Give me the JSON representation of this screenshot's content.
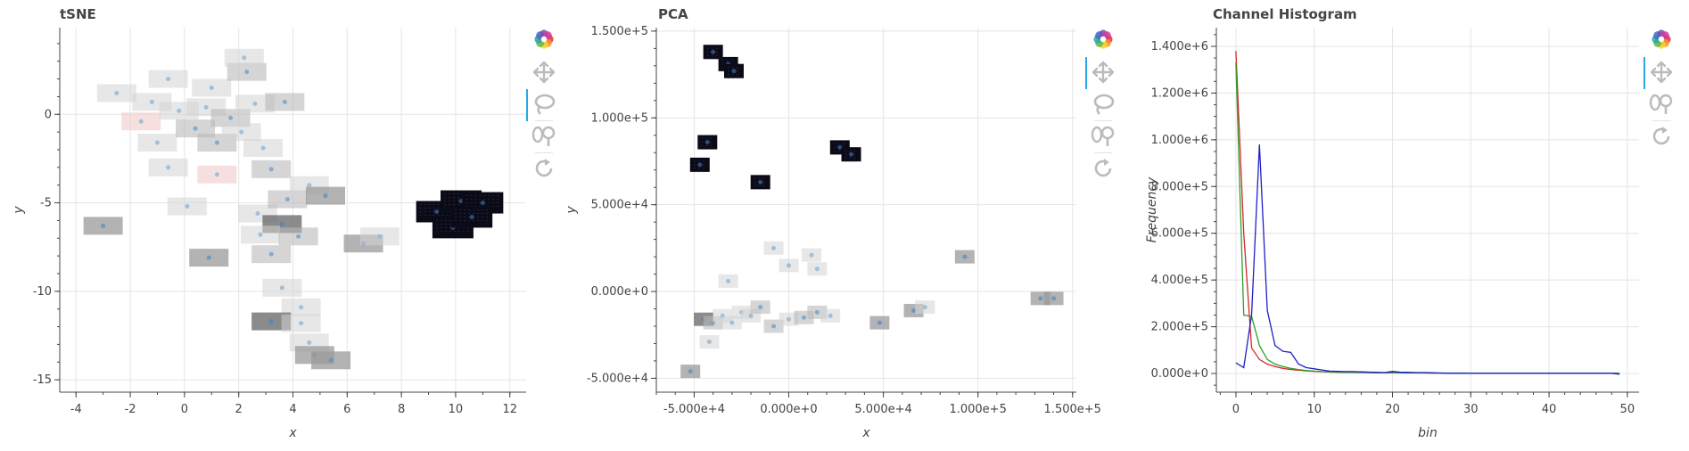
{
  "chart_data": [
    {
      "type": "scatter",
      "title": "tSNE",
      "xlabel": "x",
      "ylabel": "y",
      "xlim": [
        -4.6,
        12.6
      ],
      "ylim": [
        -15.7,
        4.9
      ],
      "xticks": [
        -4,
        -2,
        0,
        2,
        4,
        6,
        8,
        10,
        12
      ],
      "yticks": [
        0,
        -5,
        -10,
        -15
      ],
      "grid": true,
      "points": [
        {
          "x": -3.0,
          "y": -6.3,
          "tone": "gray"
        },
        {
          "x": -2.5,
          "y": 1.2,
          "tone": "light"
        },
        {
          "x": -1.6,
          "y": -0.4,
          "tone": "pink"
        },
        {
          "x": -1.2,
          "y": 0.7,
          "tone": "light"
        },
        {
          "x": -0.6,
          "y": 2.0,
          "tone": "light"
        },
        {
          "x": -0.2,
          "y": 0.2,
          "tone": "light"
        },
        {
          "x": -1.0,
          "y": -1.6,
          "tone": "light"
        },
        {
          "x": -0.6,
          "y": -3.0,
          "tone": "light"
        },
        {
          "x": 0.4,
          "y": -0.8,
          "tone": "mid"
        },
        {
          "x": 0.8,
          "y": 0.4,
          "tone": "light"
        },
        {
          "x": 1.0,
          "y": 1.5,
          "tone": "light"
        },
        {
          "x": 1.2,
          "y": -1.6,
          "tone": "mid"
        },
        {
          "x": 1.7,
          "y": -0.2,
          "tone": "mid"
        },
        {
          "x": 2.1,
          "y": -1.0,
          "tone": "light"
        },
        {
          "x": 1.2,
          "y": -3.4,
          "tone": "pink"
        },
        {
          "x": 2.3,
          "y": 2.4,
          "tone": "mid"
        },
        {
          "x": 2.2,
          "y": 3.2,
          "tone": "light"
        },
        {
          "x": 2.6,
          "y": 0.6,
          "tone": "light"
        },
        {
          "x": 2.9,
          "y": -1.9,
          "tone": "light"
        },
        {
          "x": 3.7,
          "y": 0.7,
          "tone": "mid"
        },
        {
          "x": 3.2,
          "y": -3.1,
          "tone": "mid"
        },
        {
          "x": 0.1,
          "y": -5.2,
          "tone": "light"
        },
        {
          "x": 2.7,
          "y": -5.6,
          "tone": "light"
        },
        {
          "x": 3.8,
          "y": -4.8,
          "tone": "mid"
        },
        {
          "x": 4.6,
          "y": -4.0,
          "tone": "light"
        },
        {
          "x": 5.2,
          "y": -4.6,
          "tone": "gray"
        },
        {
          "x": 3.6,
          "y": -6.2,
          "tone": "dark"
        },
        {
          "x": 2.8,
          "y": -6.8,
          "tone": "light"
        },
        {
          "x": 4.2,
          "y": -6.9,
          "tone": "mid"
        },
        {
          "x": 3.2,
          "y": -7.9,
          "tone": "mid"
        },
        {
          "x": 0.9,
          "y": -8.1,
          "tone": "gray"
        },
        {
          "x": 6.6,
          "y": -7.3,
          "tone": "gray"
        },
        {
          "x": 7.2,
          "y": -6.9,
          "tone": "light"
        },
        {
          "x": 3.6,
          "y": -9.8,
          "tone": "light"
        },
        {
          "x": 4.3,
          "y": -10.9,
          "tone": "light"
        },
        {
          "x": 3.2,
          "y": -11.7,
          "tone": "dark"
        },
        {
          "x": 4.3,
          "y": -11.8,
          "tone": "light"
        },
        {
          "x": 4.6,
          "y": -12.9,
          "tone": "light"
        },
        {
          "x": 4.8,
          "y": -13.6,
          "tone": "gray"
        },
        {
          "x": 5.4,
          "y": -13.9,
          "tone": "gray"
        },
        {
          "x": 9.3,
          "y": -5.5,
          "tone": "black"
        },
        {
          "x": 10.2,
          "y": -4.9,
          "tone": "black"
        },
        {
          "x": 11.0,
          "y": -5.0,
          "tone": "black"
        },
        {
          "x": 9.9,
          "y": -6.4,
          "tone": "black"
        },
        {
          "x": 10.6,
          "y": -5.8,
          "tone": "black"
        }
      ]
    },
    {
      "type": "scatter",
      "title": "PCA",
      "xlabel": "x",
      "ylabel": "y",
      "xlim": [
        -70000,
        152000
      ],
      "ylim": [
        -58000,
        152000
      ],
      "xticks": [
        -50000,
        0,
        50000,
        100000,
        150000
      ],
      "xticklabels": [
        "-5.000e+4",
        "0.000e+0",
        "5.000e+4",
        "1.000e+5",
        "1.500e+5"
      ],
      "yticks": [
        150000,
        100000,
        50000,
        0,
        -50000
      ],
      "yticklabels": [
        "1.500e+5",
        "1.000e+5",
        "5.000e+4",
        "0.000e+0",
        "-5.000e+4"
      ],
      "grid": true,
      "points": [
        {
          "x": -40000,
          "y": 138000,
          "tone": "black"
        },
        {
          "x": -32000,
          "y": 131000,
          "tone": "black"
        },
        {
          "x": -29000,
          "y": 127000,
          "tone": "black"
        },
        {
          "x": -43000,
          "y": 86000,
          "tone": "black"
        },
        {
          "x": -47000,
          "y": 73000,
          "tone": "black"
        },
        {
          "x": -15000,
          "y": 63000,
          "tone": "black"
        },
        {
          "x": 27000,
          "y": 83000,
          "tone": "black"
        },
        {
          "x": 33000,
          "y": 79000,
          "tone": "black"
        },
        {
          "x": -52000,
          "y": -46000,
          "tone": "gray"
        },
        {
          "x": -42000,
          "y": -29000,
          "tone": "light"
        },
        {
          "x": -45000,
          "y": -16000,
          "tone": "dark"
        },
        {
          "x": -40000,
          "y": -18000,
          "tone": "mid"
        },
        {
          "x": -35000,
          "y": -14000,
          "tone": "light"
        },
        {
          "x": -30000,
          "y": -18000,
          "tone": "light"
        },
        {
          "x": -25000,
          "y": -12000,
          "tone": "light"
        },
        {
          "x": -20000,
          "y": -14000,
          "tone": "light"
        },
        {
          "x": -32000,
          "y": 6000,
          "tone": "light"
        },
        {
          "x": -15000,
          "y": -9000,
          "tone": "mid"
        },
        {
          "x": -8000,
          "y": -20000,
          "tone": "mid"
        },
        {
          "x": 0,
          "y": -16000,
          "tone": "light"
        },
        {
          "x": 8000,
          "y": -15000,
          "tone": "mid"
        },
        {
          "x": 15000,
          "y": -12000,
          "tone": "mid"
        },
        {
          "x": 22000,
          "y": -14000,
          "tone": "light"
        },
        {
          "x": -8000,
          "y": 25000,
          "tone": "light"
        },
        {
          "x": 0,
          "y": 15000,
          "tone": "light"
        },
        {
          "x": 12000,
          "y": 21000,
          "tone": "light"
        },
        {
          "x": 15000,
          "y": 13000,
          "tone": "light"
        },
        {
          "x": 48000,
          "y": -18000,
          "tone": "gray"
        },
        {
          "x": 66000,
          "y": -11000,
          "tone": "gray"
        },
        {
          "x": 72000,
          "y": -9000,
          "tone": "light"
        },
        {
          "x": 93000,
          "y": 20000,
          "tone": "gray"
        },
        {
          "x": 133000,
          "y": -4000,
          "tone": "gray"
        },
        {
          "x": 140000,
          "y": -4000,
          "tone": "gray"
        }
      ]
    },
    {
      "type": "line",
      "title": "Channel Histogram",
      "xlabel": "bin",
      "ylabel": "Frequency",
      "xlim": [
        -2.5,
        51.5
      ],
      "ylim": [
        -80000,
        1480000
      ],
      "xticks": [
        0,
        10,
        20,
        30,
        40,
        50
      ],
      "yticks": [
        0,
        200000,
        400000,
        600000,
        800000,
        1000000,
        1200000,
        1400000
      ],
      "yticklabels": [
        "0.000e+0",
        "2.000e+5",
        "4.000e+5",
        "6.000e+5",
        "8.000e+5",
        "1.000e+6",
        "1.200e+6",
        "1.400e+6"
      ],
      "grid": true,
      "x": [
        0,
        1,
        2,
        3,
        4,
        5,
        6,
        7,
        8,
        9,
        10,
        11,
        12,
        13,
        14,
        15,
        16,
        17,
        18,
        19,
        20,
        21,
        22,
        23,
        24,
        25,
        26,
        27,
        28,
        29,
        30,
        31,
        32,
        33,
        34,
        35,
        36,
        37,
        38,
        39,
        40,
        41,
        42,
        43,
        44,
        45,
        46,
        47,
        48,
        49
      ],
      "series": [
        {
          "color": "#d62728",
          "values": [
            1380000,
            600000,
            110000,
            60000,
            40000,
            30000,
            22000,
            17000,
            14000,
            11000,
            9000,
            7500,
            6000,
            5500,
            5000,
            4500,
            4000,
            3500,
            3000,
            3000,
            2500,
            2500,
            2000,
            2000,
            2000,
            1500,
            1500,
            1500,
            1500,
            1500,
            1000,
            1000,
            1000,
            1000,
            1000,
            1000,
            1000,
            1000,
            1000,
            1000,
            1000,
            1000,
            1000,
            1000,
            1000,
            1000,
            1000,
            1000,
            1000,
            1000
          ]
        },
        {
          "color": "#2ca02c",
          "values": [
            1330000,
            250000,
            245000,
            120000,
            60000,
            40000,
            30000,
            22000,
            17000,
            13000,
            10000,
            8000,
            7000,
            6000,
            5500,
            5000,
            4500,
            4000,
            3500,
            3500,
            3000,
            3000,
            2500,
            2500,
            2500,
            2000,
            2000,
            2000,
            2000,
            2000,
            1500,
            1500,
            1500,
            1500,
            1500,
            1500,
            1500,
            1500,
            1500,
            1500,
            1500,
            1500,
            1500,
            1500,
            1500,
            1500,
            1500,
            1500,
            1500,
            1500
          ]
        },
        {
          "color": "#1f1fc8",
          "values": [
            45000,
            25000,
            250000,
            980000,
            270000,
            120000,
            95000,
            90000,
            40000,
            25000,
            20000,
            15000,
            10000,
            9000,
            8000,
            8000,
            7000,
            6000,
            5000,
            4000,
            9000,
            5000,
            5000,
            4000,
            4000,
            3000,
            2000,
            1000,
            1000,
            1000,
            1000,
            1000,
            1000,
            1000,
            1000,
            1000,
            1000,
            1000,
            1000,
            1000,
            1000,
            1000,
            1000,
            1000,
            1000,
            1000,
            1000,
            1000,
            1000,
            -3000
          ]
        }
      ]
    }
  ],
  "colors": {
    "axis": "#444444",
    "grid": "#e5e5e5",
    "toolbar_icon": "#bbbbbb",
    "toolbar_active": "#26aae1"
  },
  "toolbar": {
    "tools": [
      "bokeh-logo-icon",
      "pan-icon",
      "lasso-select-icon",
      "wheel-zoom-icon",
      "reset-icon"
    ]
  }
}
